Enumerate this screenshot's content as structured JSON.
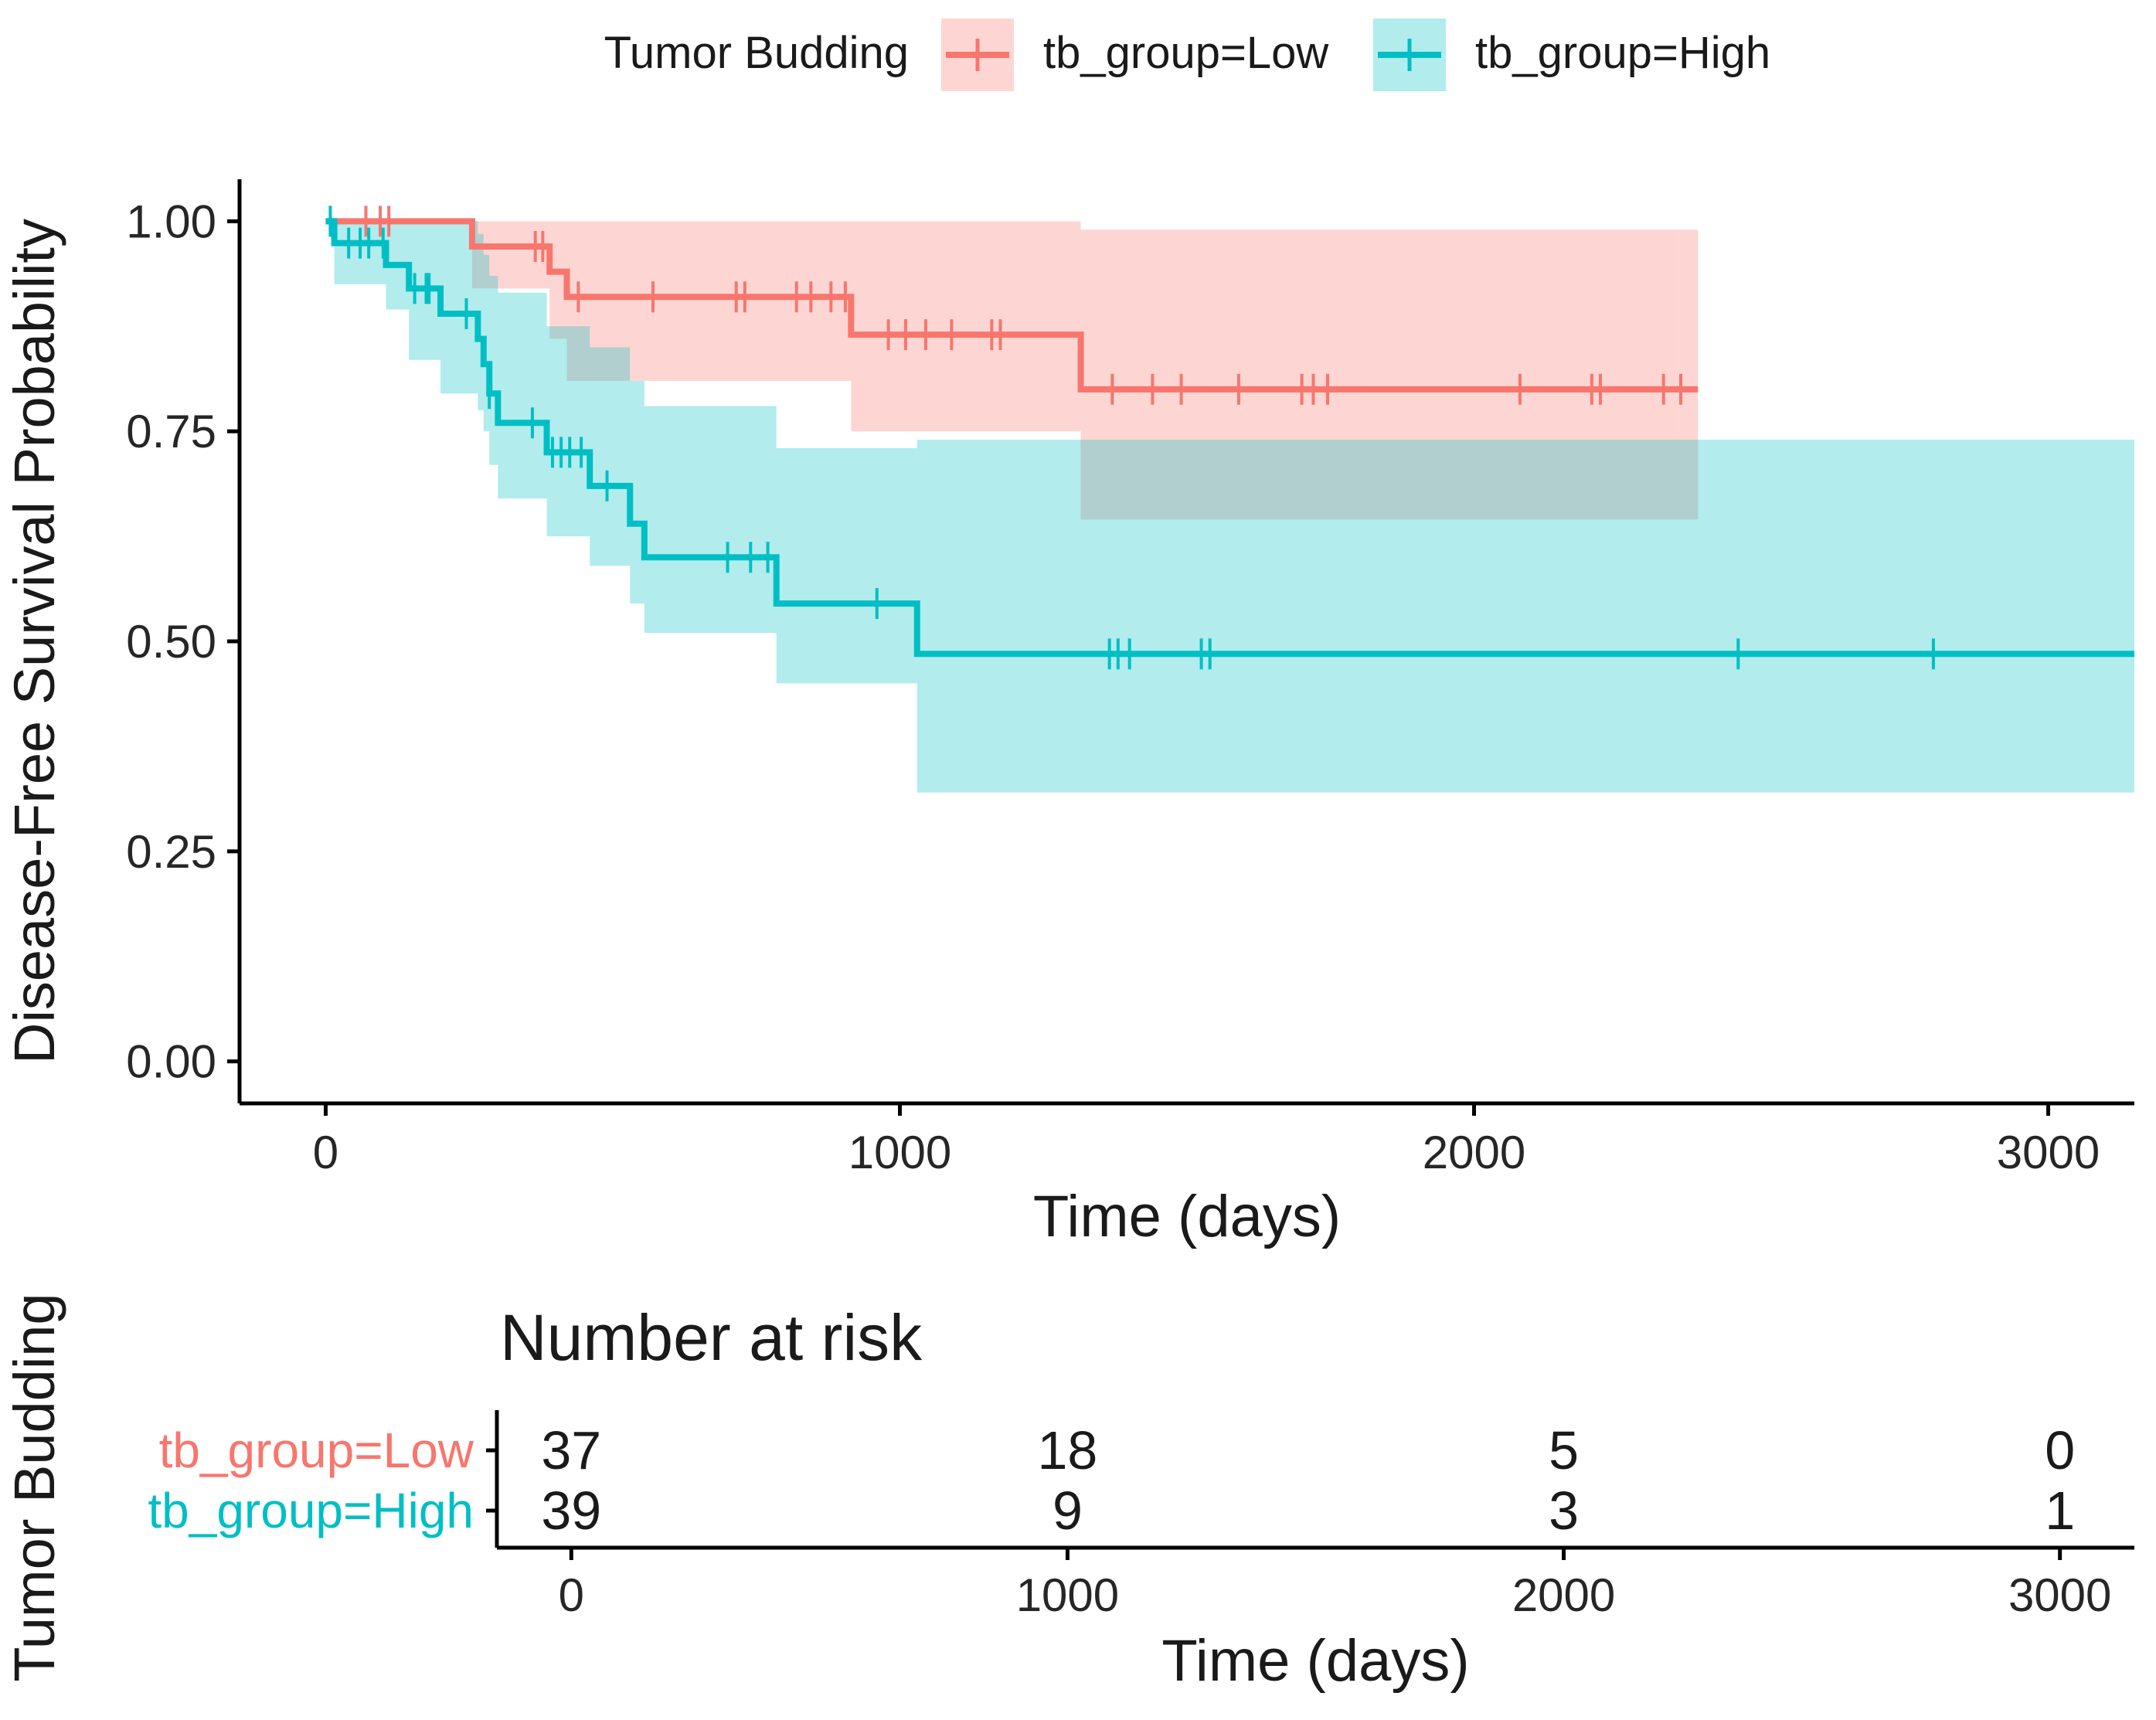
{
  "colors": {
    "low": "#F8766D",
    "high": "#00BFC4",
    "low_fill": "#F8766D",
    "high_fill": "#00BFC4",
    "axis": "#000000",
    "text": "#1a1a1a",
    "tick_text": "#262626"
  },
  "legend": {
    "title": "Tumor Budding",
    "items": [
      {
        "key": "low",
        "label": "tb_group=Low"
      },
      {
        "key": "high",
        "label": "tb_group=High"
      }
    ]
  },
  "chart_data": [
    {
      "type": "line",
      "subtype": "kaplan-meier",
      "title": "",
      "xlabel": "Time (days)",
      "ylabel": "Disease-Free Survival Probability",
      "xlim": [
        -150,
        3150
      ],
      "ylim": [
        -0.05,
        1.05
      ],
      "xticks": [
        0,
        1000,
        2000,
        3000
      ],
      "xtick_labels": [
        "0",
        "1000",
        "2000",
        "3000"
      ],
      "yticks": [
        0,
        0.25,
        0.5,
        0.75,
        1.0
      ],
      "ytick_labels": [
        "0.00",
        "0.25",
        "0.50",
        "0.75",
        "1.00"
      ],
      "series": [
        {
          "name": "tb_group=Low",
          "key": "low",
          "steps": [
            [
              0,
              1.0
            ],
            [
              255,
              0.97
            ],
            [
              390,
              0.94
            ],
            [
              420,
              0.91
            ],
            [
              915,
              0.865
            ],
            [
              1315,
              0.8
            ],
            [
              2390,
              0.8
            ]
          ],
          "ci": [
            [
              0,
              1.0,
              1.0
            ],
            [
              255,
              1.0,
              0.92
            ],
            [
              390,
              1.0,
              0.86
            ],
            [
              420,
              1.0,
              0.81
            ],
            [
              560,
              1.0,
              0.81
            ],
            [
              915,
              1.0,
              0.75
            ],
            [
              1035,
              1.0,
              0.75
            ],
            [
              1315,
              0.99,
              0.645
            ],
            [
              2355,
              0.99,
              0.645
            ]
          ],
          "censor_times": [
            70,
            95,
            110,
            365,
            378,
            440,
            570,
            715,
            730,
            820,
            845,
            880,
            905,
            980,
            1010,
            1045,
            1090,
            1160,
            1175,
            1370,
            1440,
            1490,
            1590,
            1700,
            1720,
            1745,
            2080,
            2205,
            2220,
            2330,
            2360
          ]
        },
        {
          "name": "tb_group=High",
          "key": "high",
          "steps": [
            [
              0,
              1.0
            ],
            [
              15,
              0.974
            ],
            [
              105,
              0.948
            ],
            [
              145,
              0.92
            ],
            [
              200,
              0.89
            ],
            [
              265,
              0.86
            ],
            [
              275,
              0.83
            ],
            [
              285,
              0.795
            ],
            [
              300,
              0.76
            ],
            [
              385,
              0.725
            ],
            [
              460,
              0.685
            ],
            [
              530,
              0.64
            ],
            [
              555,
              0.6
            ],
            [
              785,
              0.545
            ],
            [
              1030,
              0.485
            ],
            [
              3150,
              0.485
            ]
          ],
          "ci": [
            [
              0,
              1.0,
              1.0
            ],
            [
              15,
              1.0,
              0.925
            ],
            [
              105,
              1.0,
              0.895
            ],
            [
              145,
              1.0,
              0.835
            ],
            [
              200,
              1.0,
              0.795
            ],
            [
              265,
              0.985,
              0.775
            ],
            [
              275,
              0.96,
              0.75
            ],
            [
              285,
              0.935,
              0.71
            ],
            [
              300,
              0.915,
              0.67
            ],
            [
              385,
              0.875,
              0.625
            ],
            [
              460,
              0.85,
              0.59
            ],
            [
              530,
              0.81,
              0.545
            ],
            [
              555,
              0.78,
              0.51
            ],
            [
              785,
              0.73,
              0.45
            ],
            [
              1030,
              0.74,
              0.32
            ],
            [
              3150,
              0.74,
              0.32
            ]
          ],
          "censor_times": [
            8,
            40,
            60,
            75,
            100,
            155,
            175,
            180,
            245,
            285,
            360,
            395,
            410,
            425,
            445,
            490,
            700,
            740,
            770,
            960,
            1365,
            1380,
            1400,
            1525,
            1540,
            2460,
            2800
          ]
        }
      ]
    },
    {
      "type": "table",
      "title": "Number at risk",
      "ylabel": "Tumor Budding",
      "xlabel": "Time (days)",
      "xlim": [
        -150,
        3150
      ],
      "xticks": [
        0,
        1000,
        2000,
        3000
      ],
      "xtick_labels": [
        "0",
        "1000",
        "2000",
        "3000"
      ],
      "rows": [
        {
          "name": "tb_group=Low",
          "key": "low",
          "values": [
            37,
            18,
            5,
            0
          ]
        },
        {
          "name": "tb_group=High",
          "key": "high",
          "values": [
            39,
            9,
            3,
            1
          ]
        }
      ]
    }
  ]
}
